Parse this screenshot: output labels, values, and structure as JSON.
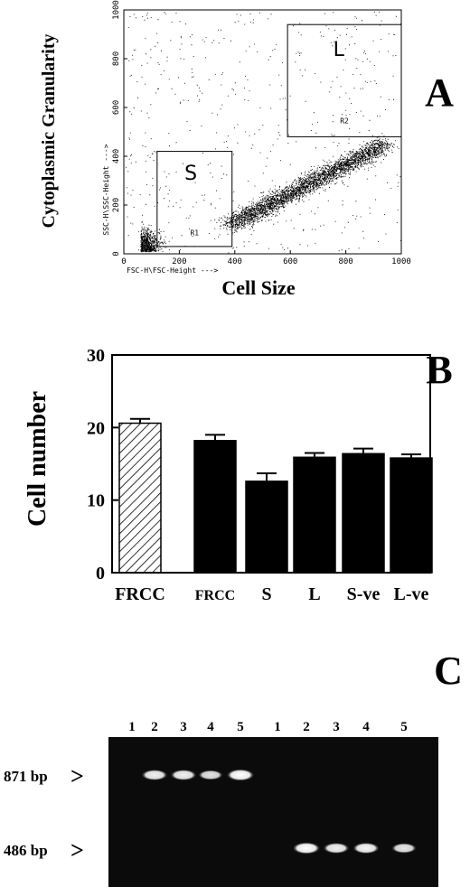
{
  "panels": {
    "a": {
      "letter": "A"
    },
    "b": {
      "letter": "B"
    },
    "c": {
      "letter": "C"
    }
  },
  "chart_data": [
    {
      "type": "scatter",
      "panel": "A",
      "xlabel": "Cell Size",
      "ylabel": "Cytoplasmic Granularity",
      "x_axis_param": "FSC-H\\FSC-Height --->",
      "y_axis_param": "SSC-H\\SSC-Height --->",
      "xlim": [
        0,
        1000
      ],
      "ylim": [
        0,
        1000
      ],
      "xticks": [
        0,
        200,
        400,
        600,
        800,
        1000
      ],
      "yticks": [
        0,
        200,
        400,
        600,
        800,
        1000
      ],
      "grid": false,
      "gates": [
        {
          "name": "S",
          "region": "R1",
          "x": [
            120,
            390
          ],
          "y": [
            30,
            420
          ]
        },
        {
          "name": "L",
          "region": "R2",
          "x": [
            590,
            1000
          ],
          "y": [
            480,
            940
          ]
        }
      ],
      "population": {
        "main_center": [
          560,
          230
        ],
        "description_hidden": true
      }
    },
    {
      "type": "bar",
      "panel": "B",
      "ylabel": "Cell number",
      "ylim": [
        0,
        30
      ],
      "yticks": [
        0,
        10,
        20,
        30
      ],
      "categories": [
        "FRCC",
        "FRCC",
        "S",
        "L",
        "S-ve",
        "L-ve"
      ],
      "values": [
        20.6,
        18.2,
        12.6,
        15.9,
        16.4,
        15.8
      ],
      "errors": [
        0.6,
        0.8,
        1.1,
        0.6,
        0.7,
        0.5
      ],
      "fills": [
        "hatched",
        "solid",
        "solid",
        "solid",
        "solid",
        "solid"
      ],
      "grid": false
    },
    {
      "type": "gel",
      "panel": "C",
      "lane_labels": [
        "1",
        "2",
        "3",
        "4",
        "5",
        "1",
        "2",
        "3",
        "4",
        "5"
      ],
      "markers": [
        {
          "label": "871 bp",
          "arrow": ">"
        },
        {
          "label": "486 bp",
          "arrow": ">"
        }
      ],
      "bands": [
        {
          "lane": 2,
          "marker": "871 bp",
          "intensity": 0.85
        },
        {
          "lane": 3,
          "marker": "871 bp",
          "intensity": 0.85
        },
        {
          "lane": 4,
          "marker": "871 bp",
          "intensity": 0.7
        },
        {
          "lane": 5,
          "marker": "871 bp",
          "intensity": 1.0
        },
        {
          "lane": 7,
          "marker": "486 bp",
          "intensity": 1.0
        },
        {
          "lane": 8,
          "marker": "486 bp",
          "intensity": 0.85
        },
        {
          "lane": 9,
          "marker": "486 bp",
          "intensity": 0.9
        },
        {
          "lane": 10,
          "marker": "486 bp",
          "intensity": 0.75
        }
      ]
    }
  ]
}
